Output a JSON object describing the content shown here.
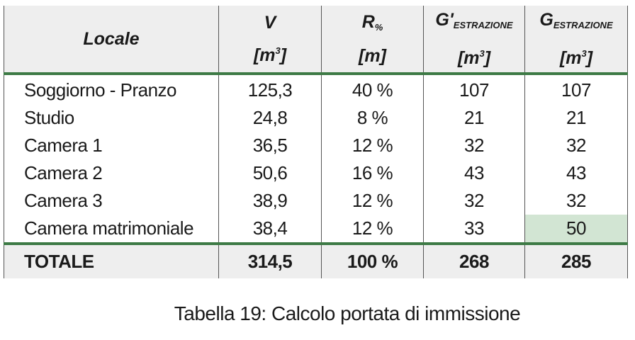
{
  "table": {
    "header": [
      {
        "label": "Locale"
      },
      {
        "symbol": "V",
        "unit": {
          "base": "[m",
          "sup": "3",
          "end": "]"
        }
      },
      {
        "symbol": "R",
        "sub": "%",
        "unit": "[m]"
      },
      {
        "symbol": "G'",
        "sub": "ESTRAZIONE",
        "unit": {
          "base": "[m",
          "sup": "3",
          "end": "]"
        }
      },
      {
        "symbol": "G",
        "sub": "ESTRAZIONE",
        "unit": {
          "base": "[m",
          "sup": "3",
          "end": "]"
        }
      }
    ],
    "rows": [
      [
        "Soggiorno - Pranzo",
        "125,3",
        "40 %",
        "107",
        "107"
      ],
      [
        "Studio",
        "24,8",
        "8 %",
        "21",
        "21"
      ],
      [
        "Camera 1",
        "36,5",
        "12 %",
        "32",
        "32"
      ],
      [
        "Camera 2",
        "50,6",
        "16 %",
        "43",
        "43"
      ],
      [
        "Camera 3",
        "38,9",
        "12 %",
        "32",
        "32"
      ],
      [
        "Camera matrimoniale",
        "38,4",
        "12 %",
        "33",
        "50"
      ]
    ],
    "total": [
      "TOTALE",
      "314,5",
      "100 %",
      "268",
      "285"
    ]
  },
  "caption": "Tabella 19: Calcolo portata di immissione"
}
